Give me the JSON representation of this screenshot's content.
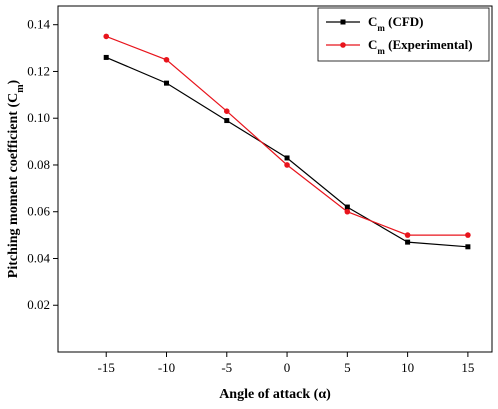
{
  "chart_data": {
    "type": "line",
    "x": [
      -15,
      -10,
      -5,
      0,
      5,
      10,
      15
    ],
    "xlabel": "Angle of attack (α)",
    "ylabel": "Pitching moment coefficient (C",
    "ylabel_sub": "m",
    "ylabel_suffix": ")",
    "xlim": [
      -19,
      17
    ],
    "ylim": [
      0.0,
      0.148
    ],
    "xticks": [
      "-15",
      "-10",
      "-5",
      "0",
      "5",
      "10",
      "15"
    ],
    "yticks": [
      "0.02",
      "0.04",
      "0.06",
      "0.08",
      "0.10",
      "0.12",
      "0.14"
    ],
    "legend_position": "top-right",
    "series": [
      {
        "name": "C",
        "name_sub": "m",
        "name_suffix": " (CFD)",
        "color": "#000000",
        "marker": "square",
        "values": [
          0.126,
          0.115,
          0.099,
          0.083,
          0.062,
          0.047,
          0.045
        ]
      },
      {
        "name": "C",
        "name_sub": "m",
        "name_suffix": " (Experimental)",
        "color": "#e8141c",
        "marker": "circle",
        "values": [
          0.135,
          0.125,
          0.103,
          0.08,
          0.06,
          0.05,
          0.05
        ]
      }
    ]
  }
}
